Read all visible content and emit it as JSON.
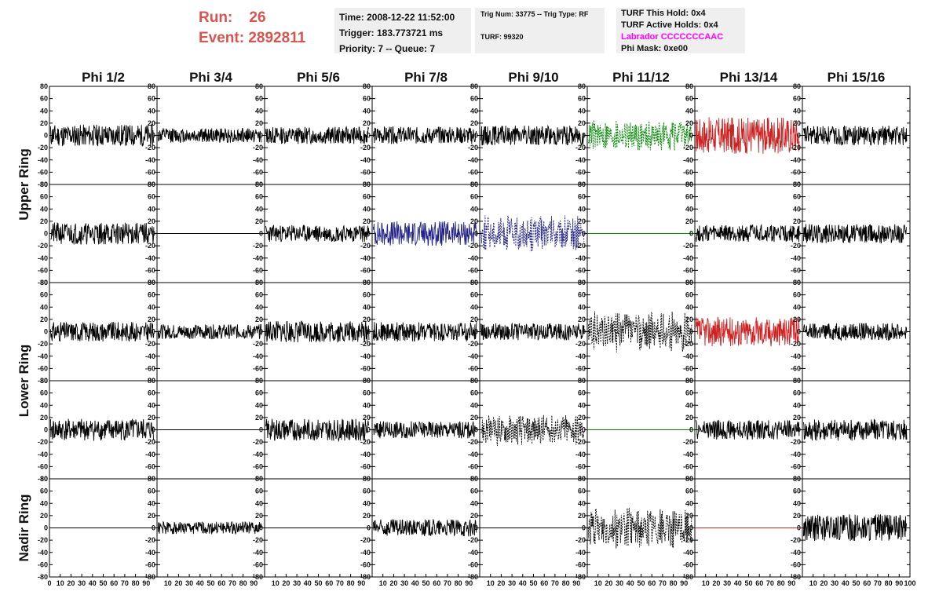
{
  "header": {
    "run_label": "Run:",
    "run_value": "26",
    "event_label": "Event:",
    "event_value": "2892811",
    "time_line": "Time: 2008-12-22 11:52:00",
    "trigger_line": "Trigger: 183.773721 ms",
    "priority_line": "Priority: 7 -- Queue: 7",
    "trig_num_line": "Trig Num: 33775 -- Trig Type: RF",
    "turf_line": "TURF: 99320",
    "turf_hold_line": "TURF This Hold: 0x4",
    "turf_active_line": "TURF Active Holds: 0x4",
    "labrador_line": "Labrador CCCCCCCAAC",
    "phi_mask_line": "Phi Mask: 0xe00",
    "run_color": "#d9534f",
    "labrador_color": "#ff00ff"
  },
  "chart_data": {
    "type": "line",
    "columns": [
      "Phi 1/2",
      "Phi 3/4",
      "Phi 5/6",
      "Phi 7/8",
      "Phi 9/10",
      "Phi 11/12",
      "Phi 13/14",
      "Phi 15/16"
    ],
    "rows": [
      "Upper Ring",
      "Lower Ring",
      "Nadir Ring"
    ],
    "xlim": [
      0,
      100
    ],
    "ylim": [
      -80,
      80
    ],
    "x_ticks": [
      0,
      10,
      20,
      30,
      40,
      50,
      60,
      70,
      80,
      90,
      100
    ],
    "y_ticks": [
      -80,
      -60,
      -40,
      -20,
      0,
      20,
      40,
      60,
      80
    ],
    "colors": {
      "black": "#000000",
      "green": "#008800",
      "red": "#cc2222",
      "blue": "#222288"
    },
    "panels": [
      [
        {
          "amp": 18,
          "color": "black",
          "style": "solid",
          "seed": 11
        },
        {
          "amp": 12,
          "color": "black",
          "style": "solid",
          "seed": 12
        },
        {
          "amp": 14,
          "color": "black",
          "style": "solid",
          "seed": 13
        },
        {
          "amp": 14,
          "color": "black",
          "style": "solid",
          "seed": 14
        },
        {
          "amp": 16,
          "color": "black",
          "style": "solid",
          "seed": 15
        },
        {
          "amp": 22,
          "color": "green",
          "style": "dashed",
          "seed": 16
        },
        {
          "amp": 30,
          "color": "red",
          "style": "solid",
          "seed": 17
        },
        {
          "amp": 16,
          "color": "black",
          "style": "solid",
          "seed": 18
        }
      ],
      [
        {
          "amp": 18,
          "color": "black",
          "style": "solid",
          "seed": 21
        },
        {
          "amp": 0,
          "color": "black",
          "style": "solid",
          "seed": 22
        },
        {
          "amp": 14,
          "color": "black",
          "style": "solid",
          "seed": 23
        },
        {
          "amp": 20,
          "color": "blue",
          "style": "solid",
          "seed": 24
        },
        {
          "amp": 26,
          "color": "blue",
          "style": "dashed",
          "seed": 25
        },
        {
          "amp": 0,
          "color": "green",
          "style": "solid",
          "seed": 26
        },
        {
          "amp": 14,
          "color": "black",
          "style": "solid",
          "seed": 27
        },
        {
          "amp": 16,
          "color": "black",
          "style": "solid",
          "seed": 28
        }
      ],
      [
        {
          "amp": 16,
          "color": "black",
          "style": "solid",
          "seed": 31
        },
        {
          "amp": 12,
          "color": "black",
          "style": "solid",
          "seed": 32
        },
        {
          "amp": 18,
          "color": "black",
          "style": "solid",
          "seed": 33
        },
        {
          "amp": 16,
          "color": "black",
          "style": "solid",
          "seed": 34
        },
        {
          "amp": 14,
          "color": "black",
          "style": "solid",
          "seed": 35
        },
        {
          "amp": 28,
          "color": "black",
          "style": "dashed",
          "seed": 36
        },
        {
          "amp": 24,
          "color": "red",
          "style": "solid",
          "seed": 37
        },
        {
          "amp": 14,
          "color": "black",
          "style": "solid",
          "seed": 38
        }
      ],
      [
        {
          "amp": 18,
          "color": "black",
          "style": "solid",
          "seed": 41
        },
        {
          "amp": 0,
          "color": "black",
          "style": "solid",
          "seed": 42
        },
        {
          "amp": 18,
          "color": "black",
          "style": "solid",
          "seed": 43
        },
        {
          "amp": 14,
          "color": "black",
          "style": "solid",
          "seed": 44
        },
        {
          "amp": 22,
          "color": "black",
          "style": "dashed",
          "seed": 45
        },
        {
          "amp": 0,
          "color": "green",
          "style": "solid",
          "seed": 46
        },
        {
          "amp": 16,
          "color": "black",
          "style": "solid",
          "seed": 47
        },
        {
          "amp": 18,
          "color": "black",
          "style": "solid",
          "seed": 48
        }
      ],
      [
        {
          "amp": 0,
          "color": "black",
          "style": "solid",
          "seed": 51
        },
        {
          "amp": 10,
          "color": "black",
          "style": "solid",
          "seed": 52
        },
        {
          "amp": 0,
          "color": "black",
          "style": "solid",
          "seed": 53
        },
        {
          "amp": 14,
          "color": "black",
          "style": "solid",
          "seed": 54
        },
        {
          "amp": 0,
          "color": "black",
          "style": "solid",
          "seed": 55
        },
        {
          "amp": 28,
          "color": "black",
          "style": "dashed",
          "seed": 56
        },
        {
          "amp": 0,
          "color": "red",
          "style": "solid",
          "seed": 57
        },
        {
          "amp": 22,
          "color": "black",
          "style": "solid",
          "seed": 58
        }
      ]
    ]
  }
}
